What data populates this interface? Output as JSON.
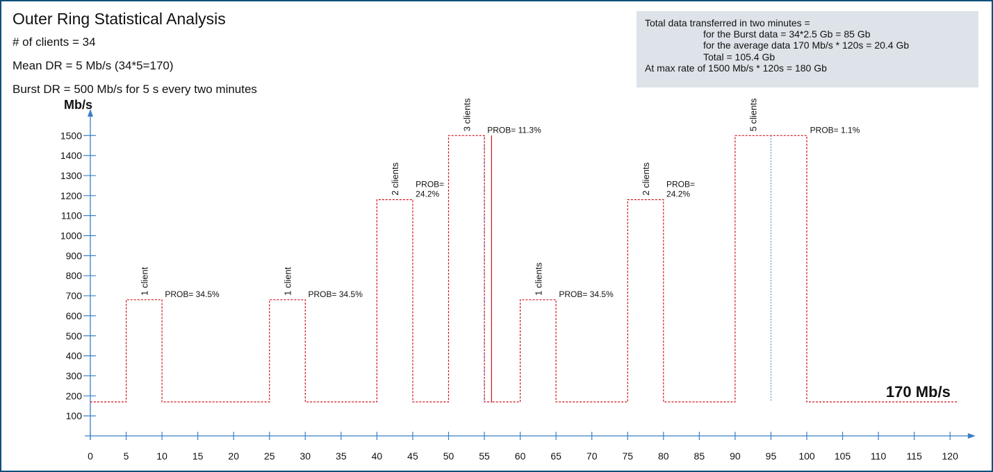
{
  "header": {
    "title": "Outer Ring Statistical Analysis",
    "lines": [
      "# of clients = 34",
      "Mean DR = 5 Mb/s (34*5=170)",
      "Burst DR = 500 Mb/s for 5 s every two minutes"
    ]
  },
  "info_box": {
    "heading": "Total data transferred in two minutes =",
    "burst": "for the Burst data = 34*2.5 Gb = 85 Gb",
    "average": "for the average data 170 Mb/s * 120s = 20.4 Gb",
    "total": "Total = 105.4 Gb",
    "max": "At max rate of 1500 Mb/s * 120s = 180 Gb"
  },
  "chart_data": {
    "type": "line",
    "title": "",
    "xlabel": "",
    "ylabel": "Mb/s",
    "x_ticks": [
      0,
      5,
      10,
      15,
      20,
      25,
      30,
      35,
      40,
      45,
      50,
      55,
      60,
      65,
      70,
      75,
      80,
      85,
      90,
      95,
      100,
      105,
      110,
      115,
      120
    ],
    "y_ticks": [
      100,
      200,
      300,
      400,
      500,
      600,
      700,
      800,
      900,
      1000,
      1100,
      1200,
      1300,
      1400,
      1500
    ],
    "xlim": [
      0,
      122
    ],
    "ylim": [
      0,
      1600
    ],
    "baseline": 170,
    "baseline_label": "170 Mb/s",
    "series": [
      {
        "color": "#d0121b",
        "style": "dashed",
        "points": [
          [
            0,
            170
          ],
          [
            5,
            170
          ],
          [
            5,
            680
          ],
          [
            10,
            680
          ],
          [
            10,
            170
          ],
          [
            25,
            170
          ],
          [
            25,
            680
          ],
          [
            30,
            680
          ],
          [
            30,
            170
          ],
          [
            40,
            170
          ],
          [
            40,
            1180
          ],
          [
            45,
            1180
          ],
          [
            45,
            170
          ],
          [
            50,
            170
          ],
          [
            50,
            1500
          ],
          [
            55,
            1500
          ],
          [
            55,
            170
          ],
          [
            56,
            170
          ],
          [
            56,
            1500
          ],
          [
            56,
            170
          ],
          [
            60,
            170
          ],
          [
            60,
            680
          ],
          [
            65,
            680
          ],
          [
            65,
            170
          ],
          [
            75,
            170
          ],
          [
            75,
            1180
          ],
          [
            80,
            1180
          ],
          [
            80,
            170
          ],
          [
            90,
            170
          ],
          [
            90,
            1500
          ],
          [
            100,
            1500
          ],
          [
            100,
            170
          ],
          [
            121,
            170
          ]
        ]
      }
    ],
    "guides": [
      {
        "x": 55,
        "color": "#3a7fc4"
      },
      {
        "x": 95,
        "color": "#3a7fc4"
      }
    ],
    "annotations": [
      {
        "x": 7.5,
        "y": 680,
        "clients": "1 client",
        "prob": "PROB= 34.5%"
      },
      {
        "x": 27.5,
        "y": 680,
        "clients": "1 client",
        "prob": "PROB= 34.5%"
      },
      {
        "x": 42.5,
        "y": 1180,
        "clients": "2 clients",
        "prob": "PROB=\n24.2%"
      },
      {
        "x": 52.5,
        "y": 1500,
        "clients": "3 clients",
        "prob": "PROB= 11.3%"
      },
      {
        "x": 62.5,
        "y": 680,
        "clients": "1 clients",
        "prob": "PROB= 34.5%"
      },
      {
        "x": 77.5,
        "y": 1180,
        "clients": "2 clients",
        "prob": "PROB=\n24.2%"
      },
      {
        "x": 92.5,
        "y": 1500,
        "clients": "5 clients",
        "prob": "PROB= 1.1%"
      }
    ],
    "grid": false
  }
}
